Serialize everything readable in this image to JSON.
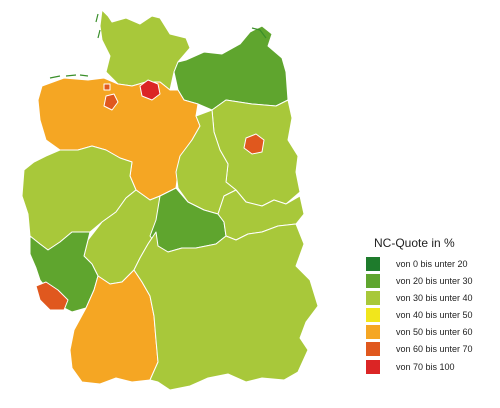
{
  "legend": {
    "title": "NC-Quote in %",
    "items": [
      {
        "label": "von 0 bis unter 20",
        "color": "#1e7b2c"
      },
      {
        "label": "von 20 bis unter 30",
        "color": "#5fa52e"
      },
      {
        "label": "von 30 bis unter 40",
        "color": "#a8c83a"
      },
      {
        "label": "von 40 bis unter 50",
        "color": "#f1e61c"
      },
      {
        "label": "von 50 bis unter 60",
        "color": "#f5a623"
      },
      {
        "label": "von 60 bis unter 70",
        "color": "#e0581e"
      },
      {
        "label": "von 70 bis 100",
        "color": "#db2525"
      }
    ]
  },
  "states": [
    {
      "name": "Schleswig-Holstein",
      "class": "von 30 bis unter 40"
    },
    {
      "name": "Hamburg",
      "class": "von 70 bis 100"
    },
    {
      "name": "Mecklenburg-Vorpommern",
      "class": "von 20 bis unter 30"
    },
    {
      "name": "Niedersachsen",
      "class": "von 50 bis unter 60"
    },
    {
      "name": "Bremen",
      "class": "von 60 bis unter 70"
    },
    {
      "name": "Brandenburg",
      "class": "von 30 bis unter 40"
    },
    {
      "name": "Berlin",
      "class": "von 60 bis unter 70"
    },
    {
      "name": "Sachsen-Anhalt",
      "class": "von 30 bis unter 40"
    },
    {
      "name": "Nordrhein-Westfalen",
      "class": "von 30 bis unter 40"
    },
    {
      "name": "Hessen",
      "class": "von 30 bis unter 40"
    },
    {
      "name": "Thüringen",
      "class": "von 20 bis unter 30"
    },
    {
      "name": "Sachsen",
      "class": "von 30 bis unter 40"
    },
    {
      "name": "Rheinland-Pfalz",
      "class": "von 20 bis unter 30"
    },
    {
      "name": "Saarland",
      "class": "von 60 bis unter 70"
    },
    {
      "name": "Baden-Württemberg",
      "class": "von 50 bis unter 60"
    },
    {
      "name": "Bayern",
      "class": "von 30 bis unter 40"
    }
  ]
}
